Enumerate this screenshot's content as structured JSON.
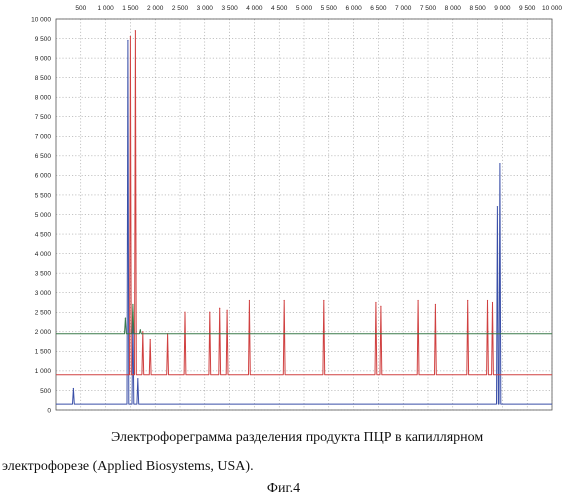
{
  "chart_data": {
    "type": "line",
    "title": "",
    "xlabel": "",
    "ylabel": "",
    "xlim": [
      0,
      10000
    ],
    "ylim": [
      0,
      10000
    ],
    "x_ticks": [
      500,
      1000,
      1500,
      2000,
      2500,
      3000,
      3500,
      4000,
      4500,
      5000,
      5500,
      6000,
      6500,
      7000,
      7500,
      8000,
      8500,
      9000,
      9500,
      10000
    ],
    "x_tick_labels": [
      "500",
      "1 000",
      "1 500",
      "2 000",
      "2 500",
      "3 000",
      "3 500",
      "4 000",
      "4 500",
      "5 000",
      "5 500",
      "6 000",
      "6 500",
      "7 000",
      "7 500",
      "8 000",
      "8 500",
      "9 000",
      "9 500",
      "10 000"
    ],
    "y_ticks": [
      0,
      500,
      1000,
      1500,
      2000,
      2500,
      3000,
      3500,
      4000,
      4500,
      5000,
      5500,
      6000,
      6500,
      7000,
      7500,
      8000,
      8500,
      9000,
      9500,
      10000
    ],
    "y_tick_labels": [
      "0",
      "500",
      "1 000",
      "1 500",
      "2 000",
      "2 500",
      "3 000",
      "3 500",
      "4 000",
      "4 500",
      "5 000",
      "5 500",
      "6 000",
      "6 500",
      "7 000",
      "7 500",
      "8 000",
      "8 500",
      "9 000",
      "9 500",
      "10 000"
    ],
    "grid": true,
    "series": [
      {
        "color": "#3a4fa8",
        "baseline": 150,
        "peaks": [
          [
            350,
            550
          ],
          [
            1450,
            9450
          ],
          [
            1550,
            2500
          ],
          [
            1650,
            800
          ],
          [
            8950,
            6300
          ],
          [
            8900,
            5200
          ]
        ]
      },
      {
        "color": "#d04040",
        "baseline": 900,
        "peaks": [
          [
            1500,
            9550
          ],
          [
            1600,
            9700
          ],
          [
            1750,
            2000
          ],
          [
            1900,
            1800
          ],
          [
            2250,
            1950
          ],
          [
            2600,
            2500
          ],
          [
            3100,
            2500
          ],
          [
            3300,
            2600
          ],
          [
            3450,
            2550
          ],
          [
            3900,
            2800
          ],
          [
            4600,
            2800
          ],
          [
            5400,
            2800
          ],
          [
            6450,
            2750
          ],
          [
            6550,
            2650
          ],
          [
            7300,
            2800
          ],
          [
            7650,
            2700
          ],
          [
            8300,
            2800
          ],
          [
            8700,
            2800
          ],
          [
            8800,
            2750
          ]
        ]
      },
      {
        "color": "#3a7a4a",
        "baseline": 1950,
        "peaks": [
          [
            1400,
            2350
          ],
          [
            1550,
            2700
          ],
          [
            1700,
            2050
          ]
        ]
      }
    ]
  },
  "caption": {
    "line1": "Электрофореграмма разделения продукта ПЦР в капиллярном",
    "line2": "электрофорезе (Applied Biosystems, USA).",
    "figure_label": "Фиг.4"
  }
}
